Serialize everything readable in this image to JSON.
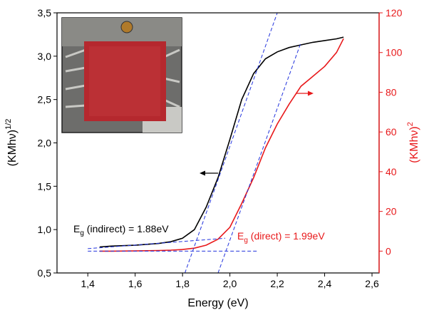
{
  "chart_data": {
    "type": "line",
    "x_label": "Energy (eV)",
    "y_label": {
      "base": "(KMhν)",
      "sup": "1/2"
    },
    "y2_label": {
      "base": "(KMhν)",
      "sup": "2"
    },
    "xlim": [
      1.27,
      2.63
    ],
    "xticks": [
      {
        "value": 1.4,
        "label": "1,4"
      },
      {
        "value": 1.6,
        "label": "1,6"
      },
      {
        "value": 1.8,
        "label": "1,8"
      },
      {
        "value": 2.0,
        "label": "2,0"
      },
      {
        "value": 2.2,
        "label": "2,2"
      },
      {
        "value": 2.4,
        "label": "2,4"
      },
      {
        "value": 2.6,
        "label": "2,6"
      }
    ],
    "ylim": [
      0.5,
      3.5
    ],
    "yticks": [
      {
        "value": 0.5,
        "label": "0,5"
      },
      {
        "value": 1.0,
        "label": "1,0"
      },
      {
        "value": 1.5,
        "label": "1,5"
      },
      {
        "value": 2.0,
        "label": "2,0"
      },
      {
        "value": 2.5,
        "label": "2,5"
      },
      {
        "value": 3.0,
        "label": "3,0"
      },
      {
        "value": 3.5,
        "label": "3,5"
      }
    ],
    "y2lim": [
      -11,
      120
    ],
    "y2ticks": [
      0,
      20,
      40,
      60,
      80,
      100,
      120
    ],
    "y2_color": "#e8191b",
    "x": [
      1.45,
      1.5,
      1.6,
      1.7,
      1.75,
      1.8,
      1.85,
      1.9,
      1.95,
      2.0,
      2.05,
      2.1,
      2.15,
      2.2,
      2.25,
      2.3,
      2.35,
      2.4,
      2.45,
      2.48
    ],
    "series": [
      {
        "color": "#000000",
        "axis": "y",
        "values": [
          0.8,
          0.81,
          0.82,
          0.84,
          0.86,
          0.9,
          1.0,
          1.26,
          1.6,
          2.04,
          2.5,
          2.8,
          2.97,
          3.05,
          3.1,
          3.13,
          3.16,
          3.18,
          3.2,
          3.22
        ]
      },
      {
        "color": "#e8191b",
        "axis": "y2",
        "values": [
          0,
          0,
          0.1,
          0.3,
          0.5,
          0.8,
          1.5,
          3,
          6,
          12,
          24,
          37,
          52,
          64,
          74,
          83,
          88,
          93,
          100,
          107
        ]
      }
    ],
    "fit_lines": [
      {
        "color": "#2233dd",
        "axis": "y",
        "x": [
          1.81,
          2.2
        ],
        "values": [
          0.5,
          3.5
        ]
      },
      {
        "color": "#2233dd",
        "axis": "y",
        "x": [
          1.4,
          1.98
        ],
        "values": [
          0.78,
          0.9
        ]
      },
      {
        "color": "#2233dd",
        "axis": "y2",
        "x": [
          1.4,
          2.12
        ],
        "values": [
          0,
          0
        ]
      },
      {
        "color": "#2233dd",
        "axis": "y2",
        "x": [
          1.95,
          2.3
        ],
        "values": [
          -11,
          105
        ]
      }
    ],
    "annotations": [
      {
        "symbol": "E",
        "sub": "g",
        "text": " (indirect) = 1.88eV",
        "color": "#000000"
      },
      {
        "symbol": "E",
        "sub": "g",
        "text": " (direct) = 1.99eV",
        "color": "#e8191b"
      }
    ]
  }
}
